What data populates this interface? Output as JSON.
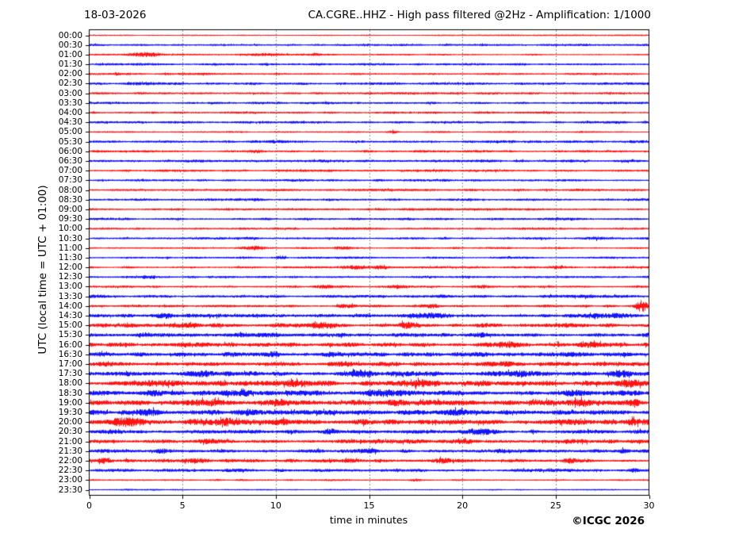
{
  "header": {
    "date": "18-03-2026",
    "title": "CA.CGRE..HHZ - High pass filtered @2Hz - Amplification: 1/1000"
  },
  "footer": {
    "credit": "©ICGC 2026"
  },
  "colors": {
    "trace_red": "#ff0000",
    "trace_blue": "#0000ff",
    "grid": "#6e6e6e",
    "axis": "#000000",
    "background": "#ffffff",
    "text": "#000000"
  },
  "chart_data": {
    "type": "line",
    "variant": "helicorder-dayplot",
    "date": "18-03-2026",
    "station": "CA.CGRE..HHZ",
    "processing": "High pass filtered @2Hz",
    "amplification": "1/1000",
    "xlabel": "time in minutes",
    "ylabel": "UTC (local time = UTC + 01:00)",
    "xlim": [
      0,
      30
    ],
    "xticks": [
      0,
      5,
      10,
      15,
      20,
      25,
      30
    ],
    "grid_minutes": [
      5,
      10,
      15,
      20,
      25
    ],
    "minutes_per_row": 30,
    "rows": [
      {
        "label": "00:00",
        "color": "red",
        "noise": 0.35,
        "events": [
          {
            "t": 26,
            "d": 8,
            "a": 0.3
          }
        ]
      },
      {
        "label": "00:30",
        "color": "blue",
        "noise": 0.8,
        "events": []
      },
      {
        "label": "01:00",
        "color": "red",
        "noise": 0.6,
        "events": [
          {
            "t": 3,
            "d": 1.6,
            "a": 2.2
          },
          {
            "t": 9.5,
            "d": 2.5,
            "a": 1.2
          },
          {
            "t": 12.2,
            "d": 0.6,
            "a": 1.0
          }
        ]
      },
      {
        "label": "01:30",
        "color": "blue",
        "noise": 0.9,
        "events": []
      },
      {
        "label": "02:00",
        "color": "red",
        "noise": 0.8,
        "events": [
          {
            "t": 1.5,
            "d": 0.5,
            "a": 1.0
          }
        ]
      },
      {
        "label": "02:30",
        "color": "blue",
        "noise": 1.0,
        "events": [
          {
            "t": 2.6,
            "d": 1.2,
            "a": 1.2
          }
        ]
      },
      {
        "label": "03:00",
        "color": "red",
        "noise": 0.9,
        "events": []
      },
      {
        "label": "03:30",
        "color": "blue",
        "noise": 0.9,
        "events": []
      },
      {
        "label": "04:00",
        "color": "red",
        "noise": 0.85,
        "events": []
      },
      {
        "label": "04:30",
        "color": "blue",
        "noise": 0.9,
        "events": []
      },
      {
        "label": "05:00",
        "color": "red",
        "noise": 0.55,
        "events": [
          {
            "t": 16.3,
            "d": 0.4,
            "a": 1.2
          }
        ]
      },
      {
        "label": "05:30",
        "color": "blue",
        "noise": 1.0,
        "events": [
          {
            "t": 10,
            "d": 1,
            "a": 1.0
          }
        ]
      },
      {
        "label": "06:00",
        "color": "red",
        "noise": 0.9,
        "events": [
          {
            "t": 9,
            "d": 0.8,
            "a": 1.0
          }
        ]
      },
      {
        "label": "06:30",
        "color": "blue",
        "noise": 1.0,
        "events": []
      },
      {
        "label": "07:00",
        "color": "red",
        "noise": 0.9,
        "events": []
      },
      {
        "label": "07:30",
        "color": "blue",
        "noise": 0.9,
        "events": []
      },
      {
        "label": "08:00",
        "color": "red",
        "noise": 0.9,
        "events": []
      },
      {
        "label": "08:30",
        "color": "blue",
        "noise": 0.9,
        "events": [
          {
            "t": 9,
            "d": 0.7,
            "a": 1.0
          }
        ]
      },
      {
        "label": "09:00",
        "color": "red",
        "noise": 0.9,
        "events": []
      },
      {
        "label": "09:30",
        "color": "blue",
        "noise": 0.9,
        "events": []
      },
      {
        "label": "10:00",
        "color": "red",
        "noise": 0.8,
        "events": []
      },
      {
        "label": "10:30",
        "color": "blue",
        "noise": 0.9,
        "events": [
          {
            "t": 27.2,
            "d": 0.8,
            "a": 1.2
          }
        ]
      },
      {
        "label": "11:00",
        "color": "red",
        "noise": 0.7,
        "events": [
          {
            "t": 8.9,
            "d": 1,
            "a": 1.8
          },
          {
            "t": 13.6,
            "d": 1,
            "a": 1.4
          }
        ]
      },
      {
        "label": "11:30",
        "color": "blue",
        "noise": 0.8,
        "events": [
          {
            "t": 10.3,
            "d": 0.4,
            "a": 1.4
          }
        ]
      },
      {
        "label": "12:00",
        "color": "red",
        "noise": 0.8,
        "events": [
          {
            "t": 14.2,
            "d": 1.2,
            "a": 2.0
          },
          {
            "t": 15.6,
            "d": 0.8,
            "a": 1.5
          },
          {
            "t": 25,
            "d": 1,
            "a": 0.9
          }
        ]
      },
      {
        "label": "12:30",
        "color": "blue",
        "noise": 0.9,
        "events": [
          {
            "t": 3.2,
            "d": 0.8,
            "a": 1.7
          }
        ]
      },
      {
        "label": "13:00",
        "color": "red",
        "noise": 0.9,
        "events": [
          {
            "t": 12.7,
            "d": 0.8,
            "a": 1.7
          },
          {
            "t": 16.6,
            "d": 0.8,
            "a": 1.3
          },
          {
            "t": 21,
            "d": 0.8,
            "a": 1.1
          }
        ]
      },
      {
        "label": "13:30",
        "color": "blue",
        "noise": 1.0,
        "events": [
          {
            "t": 0.5,
            "d": 0.8,
            "a": 1.3
          },
          {
            "t": 18.9,
            "d": 1,
            "a": 1.4
          },
          {
            "t": 26,
            "d": 3,
            "a": 1.0
          }
        ]
      },
      {
        "label": "14:00",
        "color": "red",
        "noise": 1.0,
        "events": [
          {
            "t": 13.8,
            "d": 0.8,
            "a": 1.5
          },
          {
            "t": 18.5,
            "d": 0.6,
            "a": 1.3
          },
          {
            "t": 29.6,
            "d": 0.55,
            "a": 6.5
          }
        ]
      },
      {
        "label": "14:30",
        "color": "blue",
        "noise": 1.6,
        "events": [
          {
            "t": 4,
            "d": 1.5,
            "a": 1.4
          },
          {
            "t": 18.5,
            "d": 2,
            "a": 2.0
          },
          {
            "t": 28,
            "d": 1.5,
            "a": 1.6
          }
        ]
      },
      {
        "label": "15:00",
        "color": "red",
        "noise": 1.8,
        "events": [
          {
            "t": 5.5,
            "d": 1,
            "a": 1.6
          },
          {
            "t": 12.5,
            "d": 1.5,
            "a": 1.8
          },
          {
            "t": 17,
            "d": 1,
            "a": 1.6
          },
          {
            "t": 25.5,
            "d": 1.5,
            "a": 1.8
          }
        ]
      },
      {
        "label": "15:30",
        "color": "blue",
        "noise": 1.7,
        "events": [
          {
            "t": 9.5,
            "d": 1.5,
            "a": 1.8
          },
          {
            "t": 21,
            "d": 1,
            "a": 1.4
          }
        ]
      },
      {
        "label": "16:00",
        "color": "red",
        "noise": 1.8,
        "events": [
          {
            "t": 5,
            "d": 1,
            "a": 1.6
          },
          {
            "t": 14,
            "d": 1,
            "a": 1.4
          },
          {
            "t": 22,
            "d": 1.5,
            "a": 1.8
          },
          {
            "t": 27,
            "d": 1,
            "a": 1.8
          }
        ]
      },
      {
        "label": "16:30",
        "color": "blue",
        "noise": 1.9,
        "events": [
          {
            "t": 9.9,
            "d": 0.6,
            "a": 2.4
          },
          {
            "t": 13,
            "d": 1,
            "a": 1.6
          },
          {
            "t": 26,
            "d": 1.5,
            "a": 1.4
          }
        ]
      },
      {
        "label": "17:00",
        "color": "red",
        "noise": 1.9,
        "events": [
          {
            "t": 0.8,
            "d": 1,
            "a": 2.0
          },
          {
            "t": 14,
            "d": 1.5,
            "a": 1.6
          },
          {
            "t": 22,
            "d": 2,
            "a": 1.6
          }
        ]
      },
      {
        "label": "17:30",
        "color": "blue",
        "noise": 2.1,
        "events": [
          {
            "t": 6,
            "d": 2,
            "a": 1.8
          },
          {
            "t": 8.7,
            "d": 0.8,
            "a": 1.8
          },
          {
            "t": 14.5,
            "d": 1.5,
            "a": 1.8
          },
          {
            "t": 23,
            "d": 1.5,
            "a": 1.8
          },
          {
            "t": 28.5,
            "d": 1,
            "a": 2.0
          }
        ]
      },
      {
        "label": "18:00",
        "color": "red",
        "noise": 2.2,
        "events": [
          {
            "t": 4.5,
            "d": 2,
            "a": 1.8
          },
          {
            "t": 7.1,
            "d": 0.8,
            "a": 1.8
          },
          {
            "t": 11,
            "d": 1,
            "a": 1.8
          },
          {
            "t": 17.5,
            "d": 2,
            "a": 2.0
          },
          {
            "t": 29,
            "d": 1,
            "a": 2.2
          }
        ]
      },
      {
        "label": "18:30",
        "color": "blue",
        "noise": 2.2,
        "events": [
          {
            "t": 3.5,
            "d": 1.5,
            "a": 2.2
          },
          {
            "t": 8.5,
            "d": 1,
            "a": 1.8
          },
          {
            "t": 16,
            "d": 2,
            "a": 2.0
          },
          {
            "t": 26.5,
            "d": 1.5,
            "a": 1.8
          }
        ]
      },
      {
        "label": "19:00",
        "color": "red",
        "noise": 2.4,
        "events": [
          {
            "t": 6.4,
            "d": 1.8,
            "a": 3.0
          },
          {
            "t": 10,
            "d": 1,
            "a": 2.2
          },
          {
            "t": 16.5,
            "d": 1,
            "a": 2.0
          },
          {
            "t": 26.5,
            "d": 1,
            "a": 1.8
          },
          {
            "t": 29.2,
            "d": 0.6,
            "a": 2.6
          }
        ]
      },
      {
        "label": "19:30",
        "color": "blue",
        "noise": 2.0,
        "events": [
          {
            "t": 3.3,
            "d": 1.5,
            "a": 1.8
          },
          {
            "t": 8.5,
            "d": 1,
            "a": 2.0
          },
          {
            "t": 19.5,
            "d": 1.5,
            "a": 1.8
          }
        ]
      },
      {
        "label": "20:00",
        "color": "red",
        "noise": 2.0,
        "events": [
          {
            "t": 2,
            "d": 1.6,
            "a": 3.2
          },
          {
            "t": 7,
            "d": 2.5,
            "a": 2.6
          },
          {
            "t": 10.2,
            "d": 1,
            "a": 1.8
          },
          {
            "t": 14.5,
            "d": 1,
            "a": 1.8
          },
          {
            "t": 25.9,
            "d": 1.2,
            "a": 2.0
          },
          {
            "t": 29,
            "d": 1,
            "a": 2.2
          }
        ]
      },
      {
        "label": "20:30",
        "color": "blue",
        "noise": 1.6,
        "events": [
          {
            "t": 1,
            "d": 1,
            "a": 1.6
          },
          {
            "t": 13,
            "d": 1,
            "a": 1.4
          },
          {
            "t": 21.1,
            "d": 1.2,
            "a": 2.2
          }
        ]
      },
      {
        "label": "21:00",
        "color": "red",
        "noise": 1.6,
        "events": [
          {
            "t": 6.5,
            "d": 1,
            "a": 1.8
          },
          {
            "t": 20,
            "d": 1,
            "a": 1.4
          },
          {
            "t": 26,
            "d": 1,
            "a": 1.4
          }
        ]
      },
      {
        "label": "21:30",
        "color": "blue",
        "noise": 1.4,
        "events": [
          {
            "t": 3.8,
            "d": 1,
            "a": 1.5
          },
          {
            "t": 15,
            "d": 1,
            "a": 1.6
          },
          {
            "t": 22,
            "d": 1,
            "a": 1.6
          },
          {
            "t": 28.6,
            "d": 0.5,
            "a": 2.0
          }
        ]
      },
      {
        "label": "22:00",
        "color": "red",
        "noise": 1.5,
        "events": [
          {
            "t": 0.8,
            "d": 0.8,
            "a": 2.6
          },
          {
            "t": 5.5,
            "d": 1,
            "a": 1.6
          },
          {
            "t": 14,
            "d": 1,
            "a": 1.6
          },
          {
            "t": 19,
            "d": 1,
            "a": 1.6
          },
          {
            "t": 25.7,
            "d": 0.8,
            "a": 1.6
          }
        ]
      },
      {
        "label": "22:30",
        "color": "blue",
        "noise": 1.2,
        "events": [
          {
            "t": 8,
            "d": 1.5,
            "a": 1.2
          },
          {
            "t": 29.2,
            "d": 0.45,
            "a": 1.8
          }
        ]
      },
      {
        "label": "23:00",
        "color": "red",
        "noise": 0.6,
        "events": [
          {
            "t": 17.4,
            "d": 0.5,
            "a": 0.8
          }
        ]
      },
      {
        "label": "23:30",
        "color": "blue",
        "noise": 0.4,
        "events": [
          {
            "t": 3,
            "d": 4,
            "a": 0.25
          }
        ]
      }
    ]
  }
}
